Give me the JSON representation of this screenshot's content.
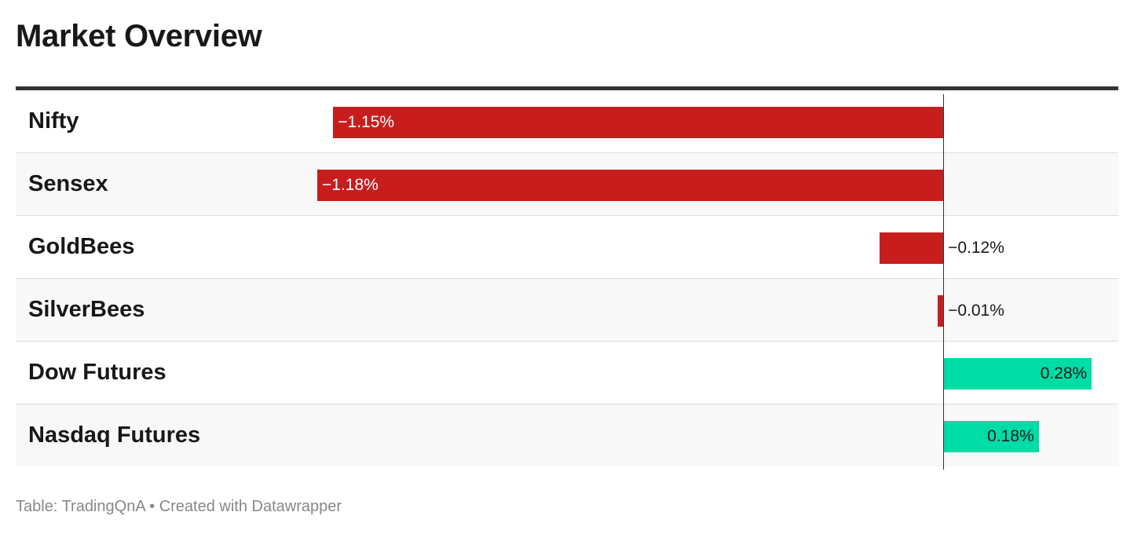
{
  "header": {
    "title": "Market Overview"
  },
  "footer": {
    "source": "Table: TradingQnA",
    "separator": "•",
    "credit": "Created with Datawrapper"
  },
  "colors": {
    "negative": "#c71e1d",
    "positive": "#00dca6"
  },
  "chart_data": {
    "type": "bar",
    "orientation": "horizontal",
    "title": "Market Overview",
    "unit": "%",
    "categories": [
      "Nifty",
      "Sensex",
      "GoldBees",
      "SilverBees",
      "Dow Futures",
      "Nasdaq Futures"
    ],
    "values": [
      -1.15,
      -1.18,
      -0.12,
      -0.01,
      0.28,
      0.18
    ],
    "value_labels": [
      "−1.15%",
      "−1.18%",
      "−0.12%",
      "−0.01%",
      "0.28%",
      "0.18%"
    ],
    "xlim": [
      -1.18,
      0.33
    ]
  }
}
